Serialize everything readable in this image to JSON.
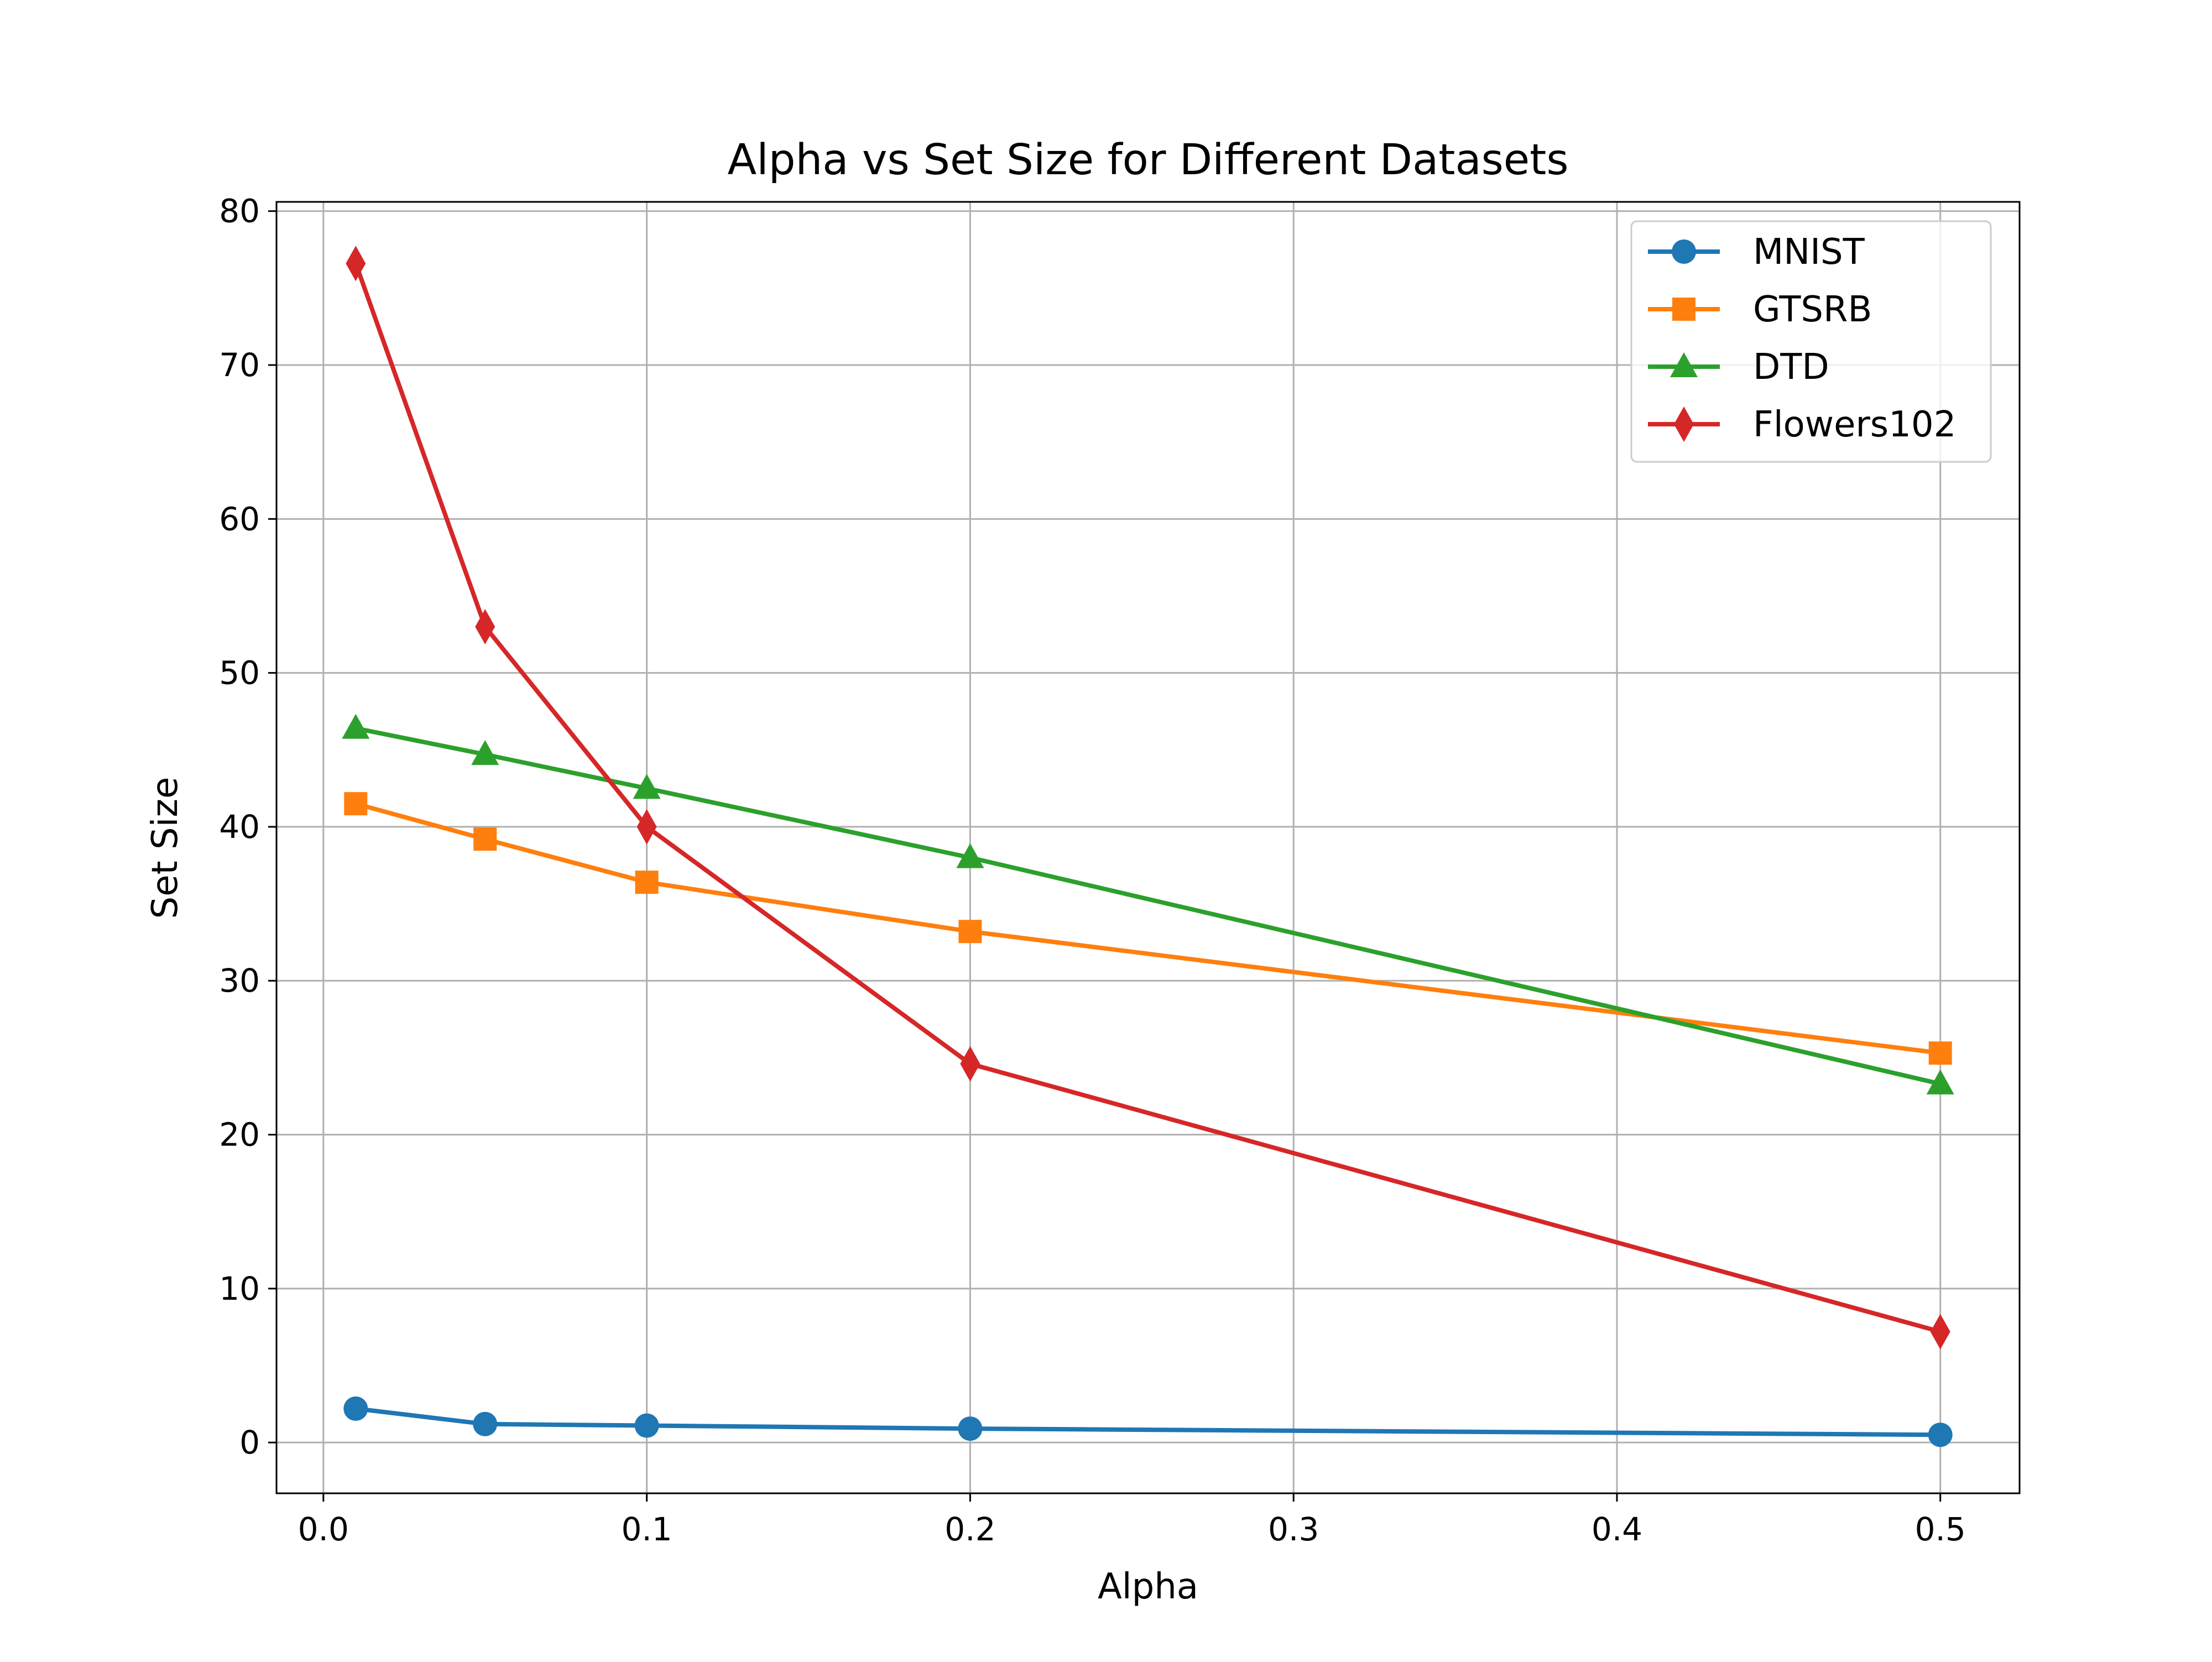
{
  "chart_data": {
    "type": "line",
    "title": "Alpha vs Set Size for Different Datasets",
    "xlabel": "Alpha",
    "ylabel": "Set Size",
    "xlim": [
      -0.0145,
      0.5245
    ],
    "ylim": [
      -3.3,
      80.6
    ],
    "x_ticks": [
      0.0,
      0.1,
      0.2,
      0.3,
      0.4,
      0.5
    ],
    "x_tick_labels": [
      "0.0",
      "0.1",
      "0.2",
      "0.3",
      "0.4",
      "0.5"
    ],
    "y_ticks": [
      0,
      10,
      20,
      30,
      40,
      50,
      60,
      70,
      80
    ],
    "y_tick_labels": [
      "0",
      "10",
      "20",
      "30",
      "40",
      "50",
      "60",
      "70",
      "80"
    ],
    "grid": true,
    "legend_position": "top-right",
    "x": [
      0.01,
      0.05,
      0.1,
      0.2,
      0.5
    ],
    "series": [
      {
        "name": "MNIST",
        "values": [
          2.2,
          1.2,
          1.1,
          0.9,
          0.5
        ],
        "color": "#1f77b4",
        "marker": "circle"
      },
      {
        "name": "GTSRB",
        "values": [
          41.5,
          39.2,
          36.4,
          33.2,
          25.3
        ],
        "color": "#ff7f0e",
        "marker": "square"
      },
      {
        "name": "DTD",
        "values": [
          46.4,
          44.7,
          42.5,
          38.0,
          23.3
        ],
        "color": "#2ca02c",
        "marker": "triangle"
      },
      {
        "name": "Flowers102",
        "values": [
          76.6,
          53.0,
          40.0,
          24.6,
          7.2
        ],
        "color": "#d62728",
        "marker": "diamond"
      }
    ]
  }
}
